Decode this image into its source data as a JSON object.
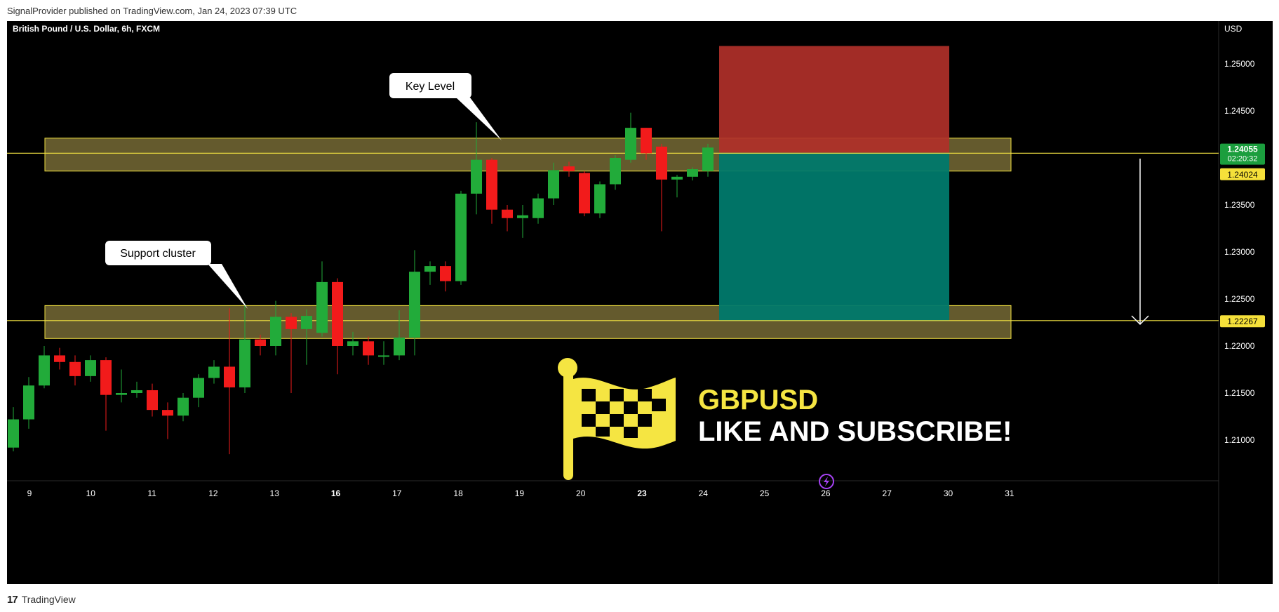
{
  "header": {
    "published_by": "SignalProvider published on TradingView.com, Jan 24, 2023 07:39 UTC"
  },
  "footer": {
    "logo_glyph": "17",
    "brand": "TradingView"
  },
  "chart_data": {
    "type": "candlestick",
    "symbol_title": "British Pound / U.S. Dollar, 6h, FXCM",
    "currency_label": "USD",
    "y_ticks": [
      1.25,
      1.245,
      1.24,
      1.235,
      1.23,
      1.225,
      1.22,
      1.215,
      1.21
    ],
    "y_tick_labels": [
      "1.25000",
      "1.24500",
      "1.24000",
      "1.23500",
      "1.23000",
      "1.22500",
      "1.22000",
      "1.21500",
      "1.21000"
    ],
    "x_ticks": [
      "9",
      "10",
      "11",
      "12",
      "13",
      "16",
      "17",
      "18",
      "19",
      "20",
      "23",
      "24",
      "25",
      "26",
      "27",
      "30",
      "31"
    ],
    "x_bold_ticks": [
      "16",
      "23"
    ],
    "current_price": {
      "value": "1.24055",
      "countdown": "02:20:32",
      "color": "#1b9e3e"
    },
    "price_tags": [
      {
        "value": "1.24024",
        "color": "#f5e03a"
      },
      {
        "value": "1.22267",
        "color": "#f5e03a"
      }
    ],
    "zones": [
      {
        "name": "key-level",
        "low": 1.2386,
        "high": 1.2421
      },
      {
        "name": "support-cluster",
        "low": 1.2208,
        "high": 1.2243
      }
    ],
    "horizontal_lines": [
      1.2405,
      1.2227
    ],
    "annotations": {
      "key_level": "Key Level",
      "support_cluster": "Support cluster"
    },
    "position": {
      "type": "short",
      "entry": 1.24055,
      "stop": 1.2519,
      "target": 1.2227,
      "stop_color": "#b03029",
      "target_color": "#00796b"
    },
    "candles": [
      [
        1.2092,
        1.2122,
        1.2088,
        1.2135
      ],
      [
        1.2122,
        1.2158,
        1.2112,
        1.2167
      ],
      [
        1.2158,
        1.219,
        1.2155,
        1.22
      ],
      [
        1.219,
        1.2183,
        1.2175,
        1.2198
      ],
      [
        1.2183,
        1.2168,
        1.2158,
        1.219
      ],
      [
        1.2168,
        1.2185,
        1.2162,
        1.219
      ],
      [
        1.2185,
        1.2148,
        1.211,
        1.2188
      ],
      [
        1.2148,
        1.215,
        1.214,
        1.2175
      ],
      [
        1.215,
        1.2153,
        1.2145,
        1.2162
      ],
      [
        1.2153,
        1.2132,
        1.2125,
        1.216
      ],
      [
        1.2132,
        1.2126,
        1.2101,
        1.214
      ],
      [
        1.2126,
        1.2145,
        1.212,
        1.215
      ],
      [
        1.2145,
        1.2166,
        1.2135,
        1.217
      ],
      [
        1.2166,
        1.2178,
        1.216,
        1.2185
      ],
      [
        1.2178,
        1.2156,
        1.2085,
        1.224
      ],
      [
        1.2156,
        1.2207,
        1.215,
        1.2245
      ],
      [
        1.2207,
        1.22,
        1.219,
        1.2212
      ],
      [
        1.22,
        1.2231,
        1.219,
        1.2248
      ],
      [
        1.2231,
        1.2218,
        1.215,
        1.2235
      ],
      [
        1.2218,
        1.2232,
        1.218,
        1.2239
      ],
      [
        1.2214,
        1.2268,
        1.221,
        1.229
      ],
      [
        1.2268,
        1.22,
        1.217,
        1.2272
      ],
      [
        1.22,
        1.2205,
        1.219,
        1.2215
      ],
      [
        1.2205,
        1.219,
        1.218,
        1.221
      ],
      [
        1.219,
        1.219,
        1.218,
        1.2205
      ],
      [
        1.219,
        1.2209,
        1.2185,
        1.2238
      ],
      [
        1.2209,
        1.2279,
        1.219,
        1.2302
      ],
      [
        1.2279,
        1.2285,
        1.2265,
        1.229
      ],
      [
        1.2285,
        1.2269,
        1.2258,
        1.229
      ],
      [
        1.2269,
        1.2362,
        1.2265,
        1.2365
      ],
      [
        1.2362,
        1.2398,
        1.234,
        1.2438
      ],
      [
        1.2398,
        1.2345,
        1.233,
        1.24
      ],
      [
        1.2345,
        1.2336,
        1.2322,
        1.235
      ],
      [
        1.2336,
        1.2339,
        1.2315,
        1.235
      ],
      [
        1.2336,
        1.2357,
        1.233,
        1.2362
      ],
      [
        1.2357,
        1.2387,
        1.235,
        1.2395
      ],
      [
        1.2391,
        1.2386,
        1.238,
        1.2396
      ],
      [
        1.2384,
        1.2341,
        1.2338,
        1.2386
      ],
      [
        1.2341,
        1.2372,
        1.2336,
        1.2375
      ],
      [
        1.2372,
        1.24,
        1.2366,
        1.2403
      ],
      [
        1.2398,
        1.2432,
        1.2395,
        1.2448
      ],
      [
        1.2432,
        1.2405,
        1.2398,
        1.2432
      ],
      [
        1.2412,
        1.2377,
        1.2322,
        1.2415
      ],
      [
        1.2377,
        1.238,
        1.2358,
        1.2382
      ],
      [
        1.238,
        1.2388,
        1.2376,
        1.239
      ],
      [
        1.2386,
        1.2411,
        1.238,
        1.2415
      ]
    ],
    "candle_colors": {
      "up": "#22ab3a",
      "down": "#f21b1b"
    },
    "watermark": {
      "line1": "GBPUSD",
      "line2": "LIKE AND SUBSCRIBE!",
      "line1_color": "#f5e542",
      "line2_color": "#ffffff",
      "icon": "checkered-flag-icon",
      "icon_color": "#f5e542"
    },
    "replay_icon": "lightning-icon",
    "grid": false,
    "background": "#000000"
  }
}
